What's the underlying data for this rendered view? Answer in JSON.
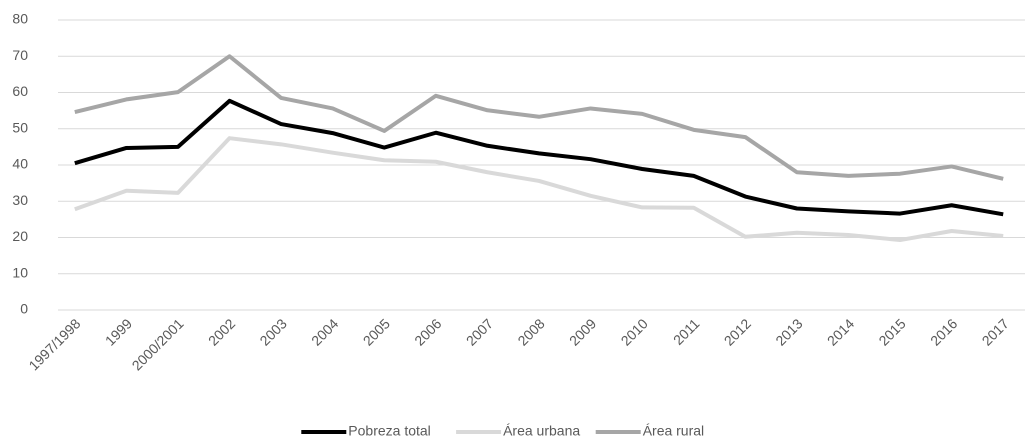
{
  "chart_data": {
    "type": "line",
    "categories": [
      "1997/1998",
      "1999",
      "2000/2001",
      "2002",
      "2003",
      "2004",
      "2005",
      "2006",
      "2007",
      "2008",
      "2009",
      "2010",
      "2011",
      "2012",
      "2013",
      "2014",
      "2015",
      "2016",
      "2017"
    ],
    "series": [
      {
        "name": "Pobreza total",
        "color": "#000000",
        "values": [
          40.5,
          44.7,
          45,
          57.7,
          51.3,
          48.8,
          44.8,
          48.9,
          45.3,
          43.2,
          41.6,
          38.9,
          37,
          31.3,
          28,
          27.2,
          26.6,
          28.9,
          26.4
        ]
      },
      {
        "name": "Área urbana",
        "color": "#d9d9d9",
        "values": [
          27.8,
          32.9,
          32.3,
          47.4,
          45.7,
          43.4,
          41.3,
          40.9,
          38,
          35.6,
          31.5,
          28.3,
          28.2,
          20.2,
          21.3,
          20.7,
          19.3,
          21.8,
          20.4
        ]
      },
      {
        "name": "Área rural",
        "color": "#a6a6a6",
        "values": [
          54.6,
          58.1,
          60.1,
          70,
          58.5,
          55.6,
          49.4,
          59.1,
          55.1,
          53.3,
          55.6,
          54.1,
          49.7,
          47.7,
          38,
          37,
          37.6,
          39.6,
          36.2
        ]
      }
    ],
    "ylim": [
      0,
      80
    ],
    "yticks": [
      0,
      10,
      20,
      30,
      40,
      50,
      60,
      70,
      80
    ],
    "grid": true,
    "legend": "bottom"
  }
}
